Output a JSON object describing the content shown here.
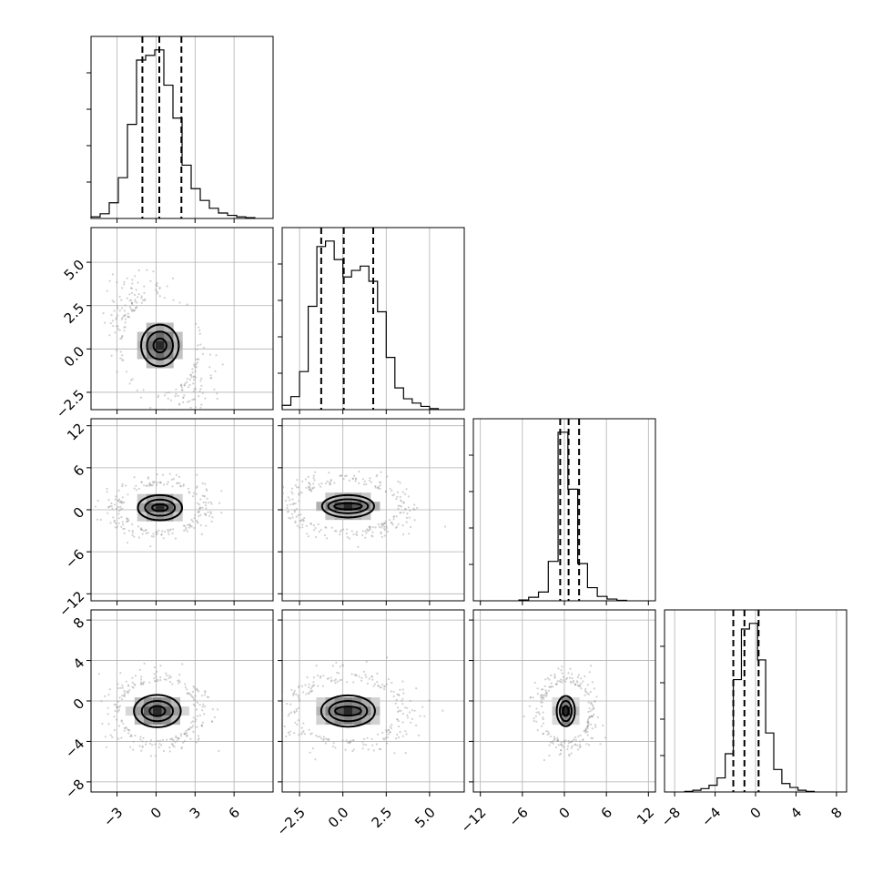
{
  "chart_data": {
    "type": "corner",
    "title": "",
    "variables": [
      {
        "range": [
          -5,
          9
        ],
        "ticks": [
          -3,
          0,
          3,
          6
        ],
        "tick_labels": [
          "−3",
          "0",
          "3",
          "6"
        ],
        "quantiles": [
          -1.05,
          0.25,
          1.95
        ],
        "hist": {
          "edges": [
            -5,
            -4.3,
            -3.6,
            -2.9,
            -2.2,
            -1.5,
            -0.8,
            -0.1,
            0.6,
            1.3,
            2.0,
            2.7,
            3.4,
            4.1,
            4.8,
            5.5,
            6.2,
            6.9,
            7.6
          ],
          "counts": [
            2,
            6,
            20,
            52,
            120,
            202,
            208,
            215,
            170,
            128,
            68,
            38,
            23,
            13,
            7,
            4,
            2,
            1
          ]
        }
      },
      {
        "range": [
          -3.5,
          7.0
        ],
        "ticks": [
          -2.5,
          0.0,
          2.5,
          5.0
        ],
        "tick_labels": [
          "−2.5",
          "0.0",
          "2.5",
          "5.0"
        ],
        "quantiles": [
          -1.25,
          0.05,
          1.75
        ],
        "hist": {
          "edges": [
            -3.5,
            -3.0,
            -2.5,
            -2.0,
            -1.5,
            -1.0,
            -0.5,
            0.0,
            0.5,
            1.0,
            1.5,
            2.0,
            2.5,
            3.0,
            3.5,
            4.0,
            4.5,
            5.0,
            5.5
          ],
          "counts": [
            4,
            12,
            35,
            95,
            150,
            155,
            138,
            122,
            128,
            132,
            118,
            90,
            48,
            20,
            10,
            6,
            3,
            1
          ]
        }
      },
      {
        "range": [
          -13,
          13
        ],
        "ticks": [
          -12,
          -6,
          0,
          6,
          12
        ],
        "tick_labels": [
          "−12",
          "−6",
          "0",
          "6",
          "12"
        ],
        "quantiles": [
          -0.6,
          0.6,
          2.1
        ],
        "hist": {
          "edges": [
            -6.5,
            -5.1,
            -3.7,
            -2.3,
            -0.9,
            0.5,
            1.9,
            3.3,
            4.7,
            6.1,
            7.5,
            8.9
          ],
          "counts": [
            2,
            8,
            20,
            90,
            385,
            255,
            85,
            30,
            10,
            4,
            1
          ]
        }
      },
      {
        "range": [
          -9,
          9
        ],
        "ticks": [
          -8,
          -4,
          0,
          4,
          8
        ],
        "tick_labels": [
          "−8",
          "−4",
          "0",
          "4",
          "8"
        ],
        "quantiles": [
          -2.2,
          -1.1,
          0.3
        ],
        "hist": {
          "edges": [
            -7,
            -6.2,
            -5.4,
            -4.6,
            -3.8,
            -3.0,
            -2.2,
            -1.4,
            -0.6,
            0.2,
            1.0,
            1.8,
            2.6,
            3.4,
            4.2,
            5.0,
            5.8
          ],
          "counts": [
            1,
            3,
            6,
            12,
            25,
            68,
            200,
            290,
            300,
            235,
            105,
            40,
            15,
            8,
            3,
            1
          ]
        }
      }
    ],
    "pairs": [
      {
        "row": 1,
        "col": 0,
        "mean": [
          0.3,
          0.2
        ],
        "sd": [
          1.5,
          1.45
        ],
        "corr": -0.45,
        "contours": [
          [
            2.9,
            2.4
          ],
          [
            2.0,
            1.6
          ],
          [
            1.0,
            0.8
          ]
        ]
      },
      {
        "row": 2,
        "col": 0,
        "mean": [
          0.3,
          0.3
        ],
        "sd": [
          1.5,
          1.7
        ],
        "corr": 0.0,
        "contours": [
          [
            3.4,
            3.6
          ],
          [
            2.3,
            2.3
          ],
          [
            1.2,
            1.0
          ]
        ]
      },
      {
        "row": 2,
        "col": 1,
        "mean": [
          0.3,
          0.5
        ],
        "sd": [
          1.5,
          1.7
        ],
        "corr": -0.1,
        "contours": [
          [
            3.0,
            3.2
          ],
          [
            2.3,
            2.0
          ],
          [
            1.6,
            0.9
          ]
        ]
      },
      {
        "row": 3,
        "col": 0,
        "mean": [
          0.1,
          -1.0
        ],
        "sd": [
          1.5,
          1.5
        ],
        "corr": 0.0,
        "contours": [
          [
            3.6,
            3.2
          ],
          [
            2.4,
            2.0
          ],
          [
            1.2,
            1.0
          ]
        ]
      },
      {
        "row": 3,
        "col": 1,
        "mean": [
          0.3,
          -1.0
        ],
        "sd": [
          1.5,
          1.5
        ],
        "corr": 0.0,
        "contours": [
          [
            3.1,
            3.1
          ],
          [
            2.2,
            2.0
          ],
          [
            1.5,
            0.9
          ]
        ]
      },
      {
        "row": 3,
        "col": 2,
        "mean": [
          0.2,
          -1.0
        ],
        "sd": [
          1.7,
          1.5
        ],
        "corr": 0.0,
        "contours": [
          [
            2.6,
            3.0
          ],
          [
            1.7,
            2.0
          ],
          [
            0.8,
            1.0
          ]
        ]
      }
    ],
    "grid": true,
    "histogram_style": "step",
    "quantile_lines": "dashed",
    "colors": {
      "lines": "#000000",
      "points": "#9a9a9a",
      "grid": "#b0b0b0"
    }
  }
}
